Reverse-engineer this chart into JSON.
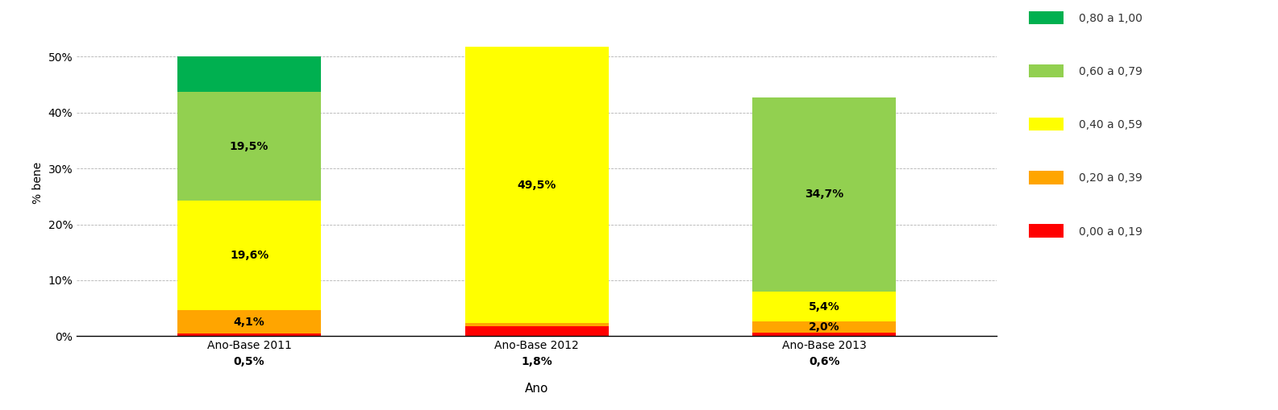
{
  "categories": [
    "Ano-Base 2011",
    "Ano-Base 2012",
    "Ano-Base 2013"
  ],
  "segments": [
    {
      "label": "0,00 a 0,19",
      "color": "#FF0000",
      "values": [
        0.5,
        1.8,
        0.6
      ]
    },
    {
      "label": "0,20 a 0,39",
      "color": "#FFA500",
      "values": [
        4.1,
        0.5,
        2.0
      ]
    },
    {
      "label": "0,40 a 0,59",
      "color": "#FFFF00",
      "values": [
        19.6,
        49.5,
        5.4
      ]
    },
    {
      "label": "0,60 a 0,79",
      "color": "#92D050",
      "values": [
        19.5,
        0.0,
        34.7
      ]
    },
    {
      "label": "0,80 a 1,00",
      "color": "#00B050",
      "values": [
        6.3,
        0.0,
        0.0
      ]
    }
  ],
  "bar_labels": [
    [
      "0,5%",
      "4,1%",
      "19,6%",
      "19,5%",
      ""
    ],
    [
      "1,8%",
      "0,5%",
      "49,5%",
      "",
      ""
    ],
    [
      "0,6%",
      "2,0%",
      "5,4%",
      "34,7%",
      ""
    ]
  ],
  "pct_labels": [
    "0,5%",
    "1,8%",
    "0,6%"
  ],
  "ylabel": "% bene",
  "xlabel": "Ano",
  "yticks": [
    0,
    10,
    20,
    30,
    40,
    50
  ],
  "ytick_labels": [
    "0%",
    "10%",
    "20%",
    "30%",
    "40%",
    "50%"
  ],
  "bar_width": 0.5,
  "ylim": [
    0,
    55
  ],
  "background_color": "#FFFFFF",
  "legend_labels_order": [
    "0,40 a 0,59",
    "0,20 a 0,39",
    "0,00 a 0,19"
  ],
  "legend_colors_order": [
    "#FFFF00",
    "#FFA500",
    "#FF0000"
  ],
  "legend_top_partial": "0,40 a 0,59",
  "label_fontsize": 10,
  "label_font_weight": "bold"
}
